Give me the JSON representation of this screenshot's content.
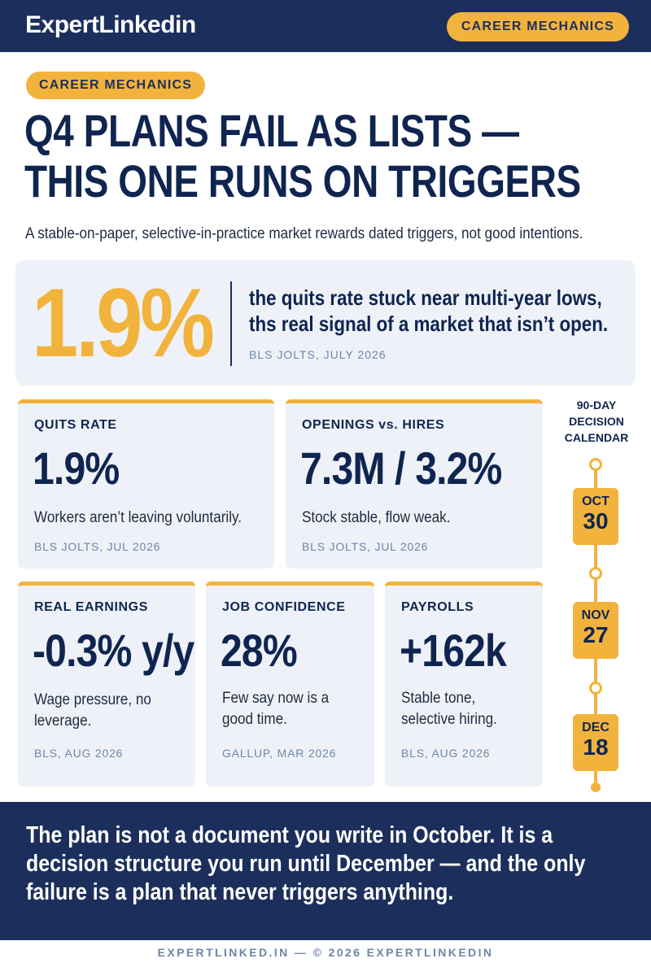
{
  "header": {
    "brand": "ExpertLinkedin",
    "tag": "CAREER MECHANICS"
  },
  "article": {
    "kicker": "CAREER MECHANICS",
    "headline_line1": "Q4 PLANS FAIL AS LISTS —",
    "headline_line2": "THIS ONE RUNS ON TRIGGERS",
    "subhead": "A stable-on-paper, selective-in-practice market rewards dated triggers, not good intentions."
  },
  "hero": {
    "value": "1.9%",
    "text_line1": "the quits rate stuck near multi-year lows,",
    "text_line2": "ths real signal of a market that isn’t open.",
    "source": "BLS JOLTS, JULY 2026"
  },
  "stats": [
    {
      "label": "QUITS RATE",
      "value": "1.9%",
      "desc": "Workers aren’t leaving voluntarily.",
      "source": "BLS JOLTS, JUL 2026"
    },
    {
      "label": "OPENINGS vs. HIRES",
      "value": "7.3M / 3.2%",
      "desc": "Stock stable, flow weak.",
      "source": "BLS JOLTS, JUL 2026"
    },
    {
      "label": "REAL EARNINGS",
      "value": "-0.3% y/y",
      "desc": "Wage pressure, no leverage.",
      "source": "BLS, AUG 2026"
    },
    {
      "label": "JOB CONFIDENCE",
      "value": "28%",
      "desc": "Few say now is a good time.",
      "source": "GALLUP, MAR 2026"
    },
    {
      "label": "PAYROLLS",
      "value": "+162k",
      "desc": "Stable tone, selective hiring.",
      "source": "BLS, AUG 2026"
    }
  ],
  "calendar": {
    "title_line1": "90-DAY",
    "title_line2": "DECISION",
    "title_line3": "CALENDAR",
    "dates": [
      {
        "month": "OCT",
        "day": "30"
      },
      {
        "month": "NOV",
        "day": "27"
      },
      {
        "month": "DEC",
        "day": "18"
      }
    ]
  },
  "footer": {
    "statement": "The plan is not a document you write in October. It is a decision structure you run until December — and the only failure is a plan that never triggers anything.",
    "credit": "EXPERTLINKED.IN — © 2026 EXPERTLINKEDIN"
  },
  "colors": {
    "navy": "#1c2f5c",
    "gold": "#f2b33d",
    "panel": "#eef2f8",
    "muted": "#6d86a8"
  }
}
